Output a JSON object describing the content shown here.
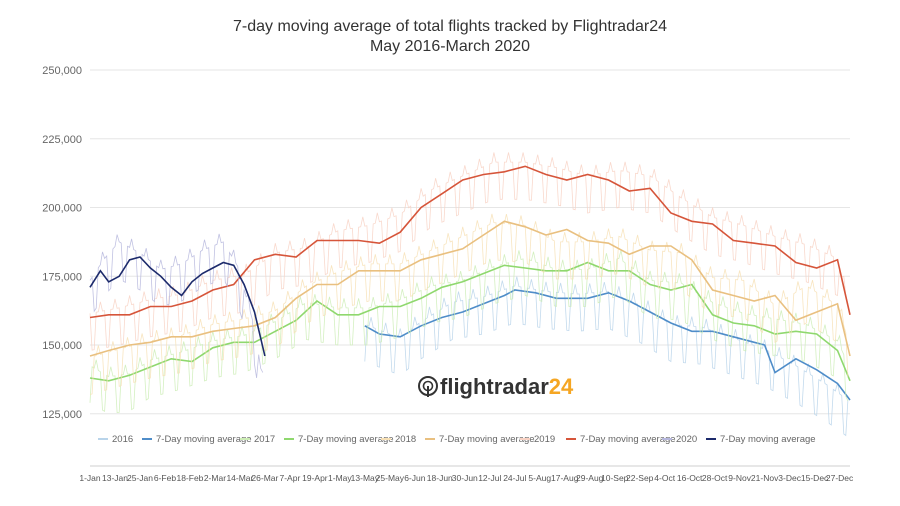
{
  "chart_data": {
    "type": "line",
    "title": "7-day moving average of total flights tracked by Flightradar24",
    "subtitle": "May 2016-March 2020",
    "brand": "flightradar24",
    "ylim": [
      110000,
      250000
    ],
    "y_ticks": [
      "125,000",
      "150,000",
      "175,000",
      "200,000",
      "225,000",
      "250,000"
    ],
    "y_tick_values": [
      125000,
      150000,
      175000,
      200000,
      225000,
      250000
    ],
    "x_tick_labels": [
      "1-Jan",
      "13-Jan",
      "25-Jan",
      "6-Feb",
      "18-Feb",
      "2-Mar",
      "14-Mar",
      "26-Mar",
      "7-Apr",
      "19-Apr",
      "1-May",
      "13-May",
      "25-May",
      "6-Jun",
      "18-Jun",
      "30-Jun",
      "12-Jul",
      "24-Jul",
      "5-Aug",
      "17-Aug",
      "29-Aug",
      "10-Sep",
      "22-Sep",
      "4-Oct",
      "16-Oct",
      "28-Oct",
      "9-Nov",
      "21-Nov",
      "3-Dec",
      "15-Dec",
      "27-Dec"
    ],
    "x_tick_days": [
      1,
      13,
      25,
      37,
      49,
      61,
      73,
      85,
      97,
      109,
      121,
      133,
      145,
      157,
      169,
      181,
      193,
      205,
      217,
      229,
      241,
      253,
      265,
      277,
      289,
      301,
      313,
      325,
      337,
      349,
      361
    ],
    "series": [
      {
        "name": "2016",
        "color": "#b9d4ea",
        "kind": "daily",
        "x": [
          133,
          150,
          160,
          175,
          190,
          205,
          220,
          235,
          250,
          265,
          280,
          295,
          310,
          325,
          340,
          355,
          366
        ],
        "y": [
          156000,
          151000,
          157000,
          164000,
          166000,
          170000,
          168000,
          167000,
          168000,
          163000,
          156000,
          155000,
          151000,
          147000,
          141000,
          134000,
          128000
        ]
      },
      {
        "name": "7-Day moving average",
        "color": "#4f8dc9",
        "kind": "avg",
        "x": [
          133,
          140,
          150,
          160,
          170,
          180,
          190,
          200,
          205,
          215,
          225,
          240,
          250,
          260,
          270,
          280,
          290,
          300,
          310,
          320,
          325,
          330,
          340,
          350,
          360,
          366
        ],
        "y": [
          157000,
          154000,
          153000,
          157000,
          160000,
          162000,
          165000,
          168000,
          170000,
          169000,
          167000,
          167000,
          169000,
          166000,
          162000,
          158000,
          155000,
          155000,
          153000,
          151000,
          150000,
          140000,
          145000,
          141000,
          136000,
          130000
        ]
      },
      {
        "name": "2017",
        "color": "#cdedb6",
        "kind": "daily",
        "x": [
          1,
          10,
          20,
          30,
          45,
          60,
          75,
          90,
          105,
          120,
          135,
          150,
          165,
          180,
          195,
          210,
          225,
          240,
          255,
          270,
          285,
          300,
          315,
          330,
          345,
          360,
          366
        ],
        "y": [
          141000,
          137000,
          138000,
          143000,
          146000,
          150000,
          152000,
          157000,
          164000,
          162000,
          162000,
          165000,
          170000,
          172000,
          177000,
          180000,
          176000,
          176000,
          180000,
          172000,
          171000,
          164000,
          160000,
          158000,
          156000,
          150000,
          140000
        ]
      },
      {
        "name": "7-Day moving average",
        "color": "#8fd86e",
        "kind": "avg",
        "x": [
          1,
          10,
          20,
          30,
          40,
          50,
          60,
          70,
          80,
          90,
          100,
          110,
          120,
          130,
          140,
          150,
          160,
          170,
          180,
          190,
          200,
          210,
          220,
          230,
          240,
          250,
          260,
          270,
          280,
          290,
          300,
          310,
          320,
          330,
          340,
          350,
          360,
          366
        ],
        "y": [
          138000,
          137000,
          139000,
          142000,
          145000,
          144000,
          149000,
          151000,
          151000,
          155000,
          159000,
          166000,
          161000,
          161000,
          164000,
          164000,
          167000,
          171000,
          173000,
          176000,
          179000,
          178000,
          177000,
          177000,
          180000,
          177000,
          177000,
          172000,
          170000,
          172000,
          161000,
          158000,
          157000,
          154000,
          155000,
          154000,
          148000,
          137000
        ]
      },
      {
        "name": "2018",
        "color": "#f7e0b5",
        "kind": "daily",
        "x": [
          1,
          15,
          30,
          45,
          60,
          75,
          90,
          105,
          120,
          135,
          150,
          165,
          180,
          195,
          210,
          225,
          240,
          255,
          270,
          285,
          300,
          315,
          330,
          345,
          360,
          366
        ],
        "y": [
          144000,
          147000,
          150000,
          152000,
          156000,
          158000,
          161000,
          170000,
          175000,
          178000,
          178000,
          183000,
          188000,
          193000,
          192000,
          186000,
          186000,
          188000,
          183000,
          182000,
          173000,
          172000,
          163000,
          170000,
          163000,
          148000
        ]
      },
      {
        "name": "7-Day moving average",
        "color": "#e9c080",
        "kind": "avg",
        "x": [
          1,
          10,
          20,
          30,
          40,
          50,
          60,
          70,
          80,
          90,
          100,
          110,
          120,
          130,
          140,
          150,
          160,
          170,
          180,
          190,
          200,
          210,
          220,
          230,
          240,
          250,
          260,
          270,
          280,
          290,
          300,
          310,
          320,
          330,
          340,
          350,
          360,
          366
        ],
        "y": [
          146000,
          148000,
          150000,
          151000,
          153000,
          153000,
          155000,
          156000,
          157000,
          160000,
          167000,
          172000,
          172000,
          177000,
          177000,
          177000,
          181000,
          183000,
          185000,
          190000,
          195000,
          193000,
          190000,
          192000,
          188000,
          187000,
          183000,
          186000,
          186000,
          181000,
          170000,
          168000,
          166000,
          168000,
          159000,
          162000,
          165000,
          146000
        ]
      },
      {
        "name": "2019",
        "color": "#f8d2c4",
        "kind": "daily",
        "x": [
          1,
          15,
          30,
          45,
          60,
          75,
          90,
          105,
          120,
          135,
          150,
          165,
          180,
          195,
          210,
          225,
          240,
          255,
          270,
          285,
          300,
          315,
          330,
          345,
          360,
          366
        ],
        "y": [
          160000,
          162000,
          165000,
          167000,
          172000,
          174000,
          182000,
          184000,
          190000,
          192000,
          196000,
          205000,
          210000,
          215000,
          215000,
          213000,
          210000,
          212000,
          210000,
          202000,
          195000,
          192000,
          188000,
          185000,
          180000,
          160000
        ]
      },
      {
        "name": "7-Day moving average",
        "color": "#d6553a",
        "kind": "avg",
        "x": [
          1,
          10,
          20,
          30,
          40,
          50,
          60,
          70,
          80,
          90,
          100,
          110,
          120,
          130,
          140,
          150,
          160,
          170,
          180,
          190,
          200,
          210,
          220,
          230,
          240,
          250,
          260,
          270,
          280,
          290,
          300,
          310,
          320,
          330,
          340,
          350,
          360,
          366
        ],
        "y": [
          160000,
          161000,
          161000,
          164000,
          164000,
          166000,
          170000,
          172000,
          181000,
          183000,
          182000,
          188000,
          188000,
          188000,
          187000,
          191000,
          200000,
          205000,
          210000,
          212000,
          213000,
          215000,
          212000,
          210000,
          212000,
          210000,
          206000,
          207000,
          198000,
          195000,
          194000,
          188000,
          187000,
          186000,
          180000,
          178000,
          181000,
          161000
        ]
      },
      {
        "name": "2020",
        "color": "#b6b7dd",
        "kind": "daily",
        "x": [
          1,
          8,
          15,
          25,
          35,
          45,
          55,
          65,
          72,
          80,
          85
        ],
        "y": [
          172000,
          180000,
          186000,
          182000,
          176000,
          178000,
          183000,
          186000,
          177000,
          155000,
          130000
        ]
      },
      {
        "name": "7-Day moving average",
        "color": "#1c2a6b",
        "kind": "avg",
        "x": [
          1,
          6,
          10,
          15,
          20,
          25,
          30,
          35,
          40,
          45,
          50,
          55,
          60,
          65,
          70,
          75,
          80,
          85
        ],
        "y": [
          171000,
          177000,
          173000,
          175000,
          181000,
          182000,
          178000,
          175000,
          171000,
          168000,
          173000,
          176000,
          178000,
          180000,
          179000,
          172000,
          162000,
          146000
        ]
      }
    ],
    "legend_position": "bottom",
    "grid": true
  }
}
